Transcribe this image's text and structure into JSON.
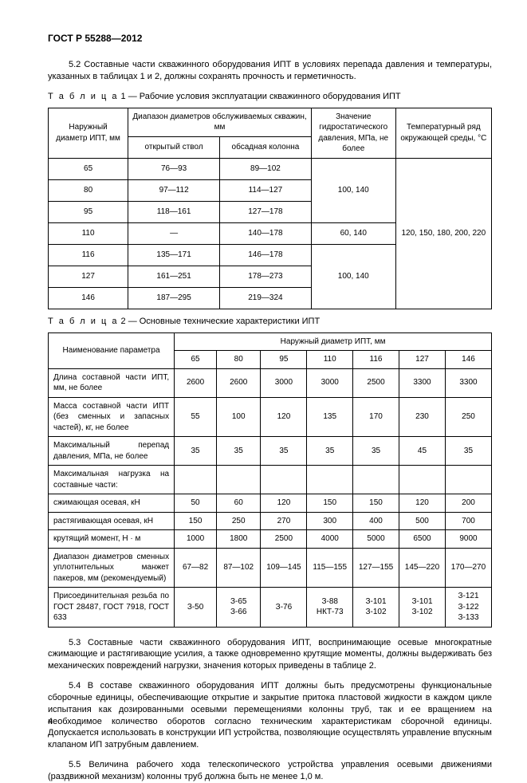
{
  "header": "ГОСТ Р 55288—2012",
  "p52": "5.2 Составные части скважинного оборудования ИПТ в условиях перепада давления и температуры, указанных в таблицах 1 и 2, должны сохранять прочность и герметичность.",
  "t1_caption_prefix": "Т а б л и ц а",
  "t1_caption": "  1 — Рабочие условия эксплуатации скважинного оборудования ИПТ",
  "t1": {
    "h_outer": "Наружный диаметр ИПТ, мм",
    "h_diap": "Диапазон диаметров обслуживаемых скважин, мм",
    "h_open": "открытый ствол",
    "h_cased": "обсадная колонна",
    "h_hydro": "Значение гидростатического давления, МПа, не более",
    "h_temp": "Температурный ряд окружающей среды, °C",
    "rows": [
      {
        "d": "65",
        "o": "76—93",
        "c": "89—102"
      },
      {
        "d": "80",
        "o": "97—112",
        "c": "114—127"
      },
      {
        "d": "95",
        "o": "118—161",
        "c": "127—178"
      },
      {
        "d": "110",
        "o": "—",
        "c": "140—178"
      },
      {
        "d": "116",
        "o": "135—171",
        "c": "146—178"
      },
      {
        "d": "127",
        "o": "161—251",
        "c": "178—273"
      },
      {
        "d": "146",
        "o": "187—295",
        "c": "219—324"
      }
    ],
    "hydro1": "100, 140",
    "hydro2": "60, 140",
    "hydro3": "100, 140",
    "temp": "120, 150, 180, 200, 220"
  },
  "t2_caption_prefix": "Т а б л и ц а",
  "t2_caption": "  2 — Основные технические характеристики ИПТ",
  "t2": {
    "h_name": "Наименование параметра",
    "h_outer": "Наружный диаметр ИПТ, мм",
    "cols": [
      "65",
      "80",
      "95",
      "110",
      "116",
      "127",
      "146"
    ],
    "rows": [
      {
        "n": "Длина составной части ИПТ, мм, не более",
        "v": [
          "2600",
          "2600",
          "3000",
          "3000",
          "2500",
          "3300",
          "3300"
        ]
      },
      {
        "n": "Масса составной части ИПТ (без сменных и запасных частей), кг, не более",
        "v": [
          "55",
          "100",
          "120",
          "135",
          "170",
          "230",
          "250"
        ]
      },
      {
        "n": "Максимальный перепад давления, МПа, не более",
        "v": [
          "35",
          "35",
          "35",
          "35",
          "35",
          "45",
          "35"
        ]
      },
      {
        "n": "Максимальная нагрузка на составные части:",
        "v": [
          "",
          "",
          "",
          "",
          "",
          "",
          ""
        ]
      },
      {
        "n": "сжимающая осевая, кН",
        "v": [
          "50",
          "60",
          "120",
          "150",
          "150",
          "120",
          "200"
        ]
      },
      {
        "n": "растягивающая осевая, кН",
        "v": [
          "150",
          "250",
          "270",
          "300",
          "400",
          "500",
          "700"
        ]
      },
      {
        "n": "крутящий момент, Н · м",
        "v": [
          "1000",
          "1800",
          "2500",
          "4000",
          "5000",
          "6500",
          "9000"
        ]
      },
      {
        "n": "Диапазон диаметров сменных уплотнительных манжет пакеров, мм (рекомендуемый)",
        "v": [
          "67—82",
          "87—102",
          "109—145",
          "115—155",
          "127—155",
          "145—220",
          "170—270"
        ]
      },
      {
        "n": "Присоединительная резьба по ГОСТ 28487, ГОСТ 7918, ГОСТ 633",
        "v": [
          "З-50",
          "З-65\nЗ-66",
          "З-76",
          "З-88\nНКТ-73",
          "З-101\nЗ-102",
          "З-101\nЗ-102",
          "З-121\nЗ-122\nЗ-133"
        ]
      }
    ]
  },
  "p53": "5.3 Составные части скважинного оборудования ИПТ, воспринимающие осевые многократные сжимающие и растягивающие усилия, а также одновременно крутящие моменты, должны выдерживать без механических повреждений нагрузки, значения которых приведены в таблице 2.",
  "p54": "5.4 В составе скважинного оборудования ИПТ должны быть предусмотрены функциональные сборочные единицы, обеспечивающие открытие и закрытие притока пластовой жидкости в каждом цикле испытания как дозированными осевыми перемещениями колонны труб, так и ее вращением на необходимое количество оборотов согласно техническим характеристикам сборочной единицы. Допускается использовать в конструкции ИП устройства, позволяющие осуществлять управление впускным клапаном ИП затрубным давлением.",
  "p55": "5.5 Величина рабочего хода телескопического устройства управления осевыми движениями (раздвижной механизм) колонны труб должна быть не менее 1,0 м.",
  "pageNum": "4"
}
